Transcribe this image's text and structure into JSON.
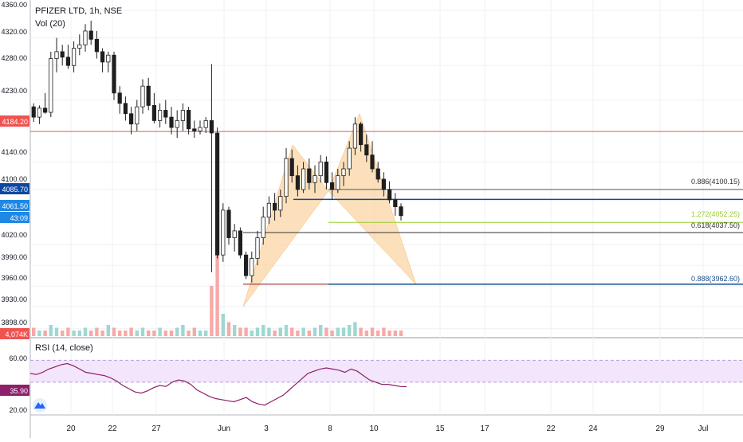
{
  "header": {
    "symbol_title": "PFIZER LTD, 1h, NSE",
    "volume_label": "Vol (20)"
  },
  "rsi_panel": {
    "label": "RSI (14, close)",
    "axis_ticks": [
      "60.00",
      "20.00"
    ],
    "current_badge": "35.90",
    "band_color": "#f3e5fb",
    "line_color": "#8e1f6b",
    "series": [
      48,
      47,
      49,
      52,
      54,
      56,
      57,
      55,
      52,
      49,
      48,
      47,
      46,
      44,
      41,
      37,
      34,
      31,
      30,
      32,
      35,
      37,
      36,
      40,
      42,
      41,
      38,
      33,
      30,
      27,
      25,
      24,
      23,
      22,
      24,
      26,
      22,
      20,
      19,
      22,
      25,
      28,
      33,
      38,
      43,
      48,
      50,
      52,
      53,
      52,
      51,
      49,
      52,
      50,
      46,
      42,
      40,
      38,
      38,
      37,
      36,
      35.9
    ]
  },
  "price_axis": {
    "ticks": [
      "4360.00",
      "4320.00",
      "4280.00",
      "4230.00",
      "4140.00",
      "4100.00",
      "4020.00",
      "3990.00",
      "3960.00",
      "3930.00",
      "3898.00"
    ],
    "badges": [
      {
        "text": "4184.20",
        "color": "#ef5350"
      },
      {
        "text": "4085.70",
        "color": "#0d47a1"
      },
      {
        "text": "4061.50",
        "color": "#1e88e5"
      },
      {
        "text": "43:09",
        "color": "#1e88e5"
      },
      {
        "text": "4,074K",
        "color": "#ef5350"
      }
    ]
  },
  "time_axis": {
    "labels": [
      "20",
      "22",
      "27",
      "Jun",
      "3",
      "8",
      "10",
      "15",
      "17",
      "22",
      "24",
      "29",
      "Jul"
    ]
  },
  "fib_labels": [
    {
      "text": "0.886(4100.15)",
      "color": "#333333"
    },
    {
      "text": "1.272(4052.25)",
      "color": "#9acd32"
    },
    {
      "text": "0.618(4037.50)",
      "color": "#333333"
    },
    {
      "text": "0.888(3962.60)",
      "color": "#1a4f8b"
    }
  ],
  "levels": {
    "resistance": 4184.2,
    "blue_level": 4085.7,
    "fib_0886": 4100.15,
    "fib_1272": 4052.25,
    "fib_0618": 4037.5,
    "fib_0888": 3962.6
  },
  "chart_data": {
    "type": "candlestick",
    "title": "PFIZER LTD, 1h, NSE",
    "ylim": [
      3885,
      4375
    ],
    "up_color": "#26a69a",
    "down_color": "#ef5350",
    "candles": [
      [
        4220,
        4225,
        4198,
        4205
      ],
      [
        4205,
        4222,
        4195,
        4218
      ],
      [
        4218,
        4240,
        4210,
        4212
      ],
      [
        4212,
        4300,
        4205,
        4290
      ],
      [
        4290,
        4320,
        4270,
        4300
      ],
      [
        4300,
        4310,
        4280,
        4292
      ],
      [
        4292,
        4310,
        4275,
        4280
      ],
      [
        4280,
        4315,
        4270,
        4305
      ],
      [
        4305,
        4325,
        4295,
        4310
      ],
      [
        4310,
        4340,
        4300,
        4330
      ],
      [
        4330,
        4345,
        4310,
        4318
      ],
      [
        4318,
        4330,
        4290,
        4300
      ],
      [
        4300,
        4305,
        4270,
        4285
      ],
      [
        4285,
        4300,
        4270,
        4295
      ],
      [
        4295,
        4300,
        4230,
        4240
      ],
      [
        4240,
        4250,
        4210,
        4225
      ],
      [
        4225,
        4235,
        4200,
        4210
      ],
      [
        4210,
        4220,
        4180,
        4195
      ],
      [
        4195,
        4230,
        4185,
        4220
      ],
      [
        4220,
        4260,
        4210,
        4250
      ],
      [
        4250,
        4262,
        4215,
        4222
      ],
      [
        4222,
        4240,
        4196,
        4200
      ],
      [
        4200,
        4225,
        4190,
        4215
      ],
      [
        4215,
        4230,
        4195,
        4205
      ],
      [
        4205,
        4220,
        4180,
        4190
      ],
      [
        4190,
        4215,
        4175,
        4200
      ],
      [
        4200,
        4225,
        4185,
        4215
      ],
      [
        4215,
        4220,
        4180,
        4188
      ],
      [
        4188,
        4200,
        4175,
        4185
      ],
      [
        4185,
        4200,
        4180,
        4190
      ],
      [
        4190,
        4205,
        4182,
        4200
      ],
      [
        4200,
        4282,
        3980,
        4182
      ],
      [
        4182,
        4190,
        4000,
        4005
      ],
      [
        4005,
        4080,
        3995,
        4070
      ],
      [
        4070,
        4075,
        4020,
        4030
      ],
      [
        4030,
        4050,
        4010,
        4040
      ],
      [
        4040,
        4045,
        4000,
        4005
      ],
      [
        4005,
        4010,
        3970,
        3975
      ],
      [
        3975,
        4010,
        3965,
        4000
      ],
      [
        4000,
        4040,
        3990,
        4030
      ],
      [
        4030,
        4075,
        4020,
        4060
      ],
      [
        4060,
        4090,
        4050,
        4080
      ],
      [
        4080,
        4095,
        4055,
        4070
      ],
      [
        4070,
        4100,
        4060,
        4090
      ],
      [
        4090,
        4160,
        4080,
        4145
      ],
      [
        4145,
        4158,
        4110,
        4120
      ],
      [
        4120,
        4135,
        4090,
        4100
      ],
      [
        4100,
        4140,
        4095,
        4130
      ],
      [
        4130,
        4145,
        4100,
        4110
      ],
      [
        4110,
        4135,
        4095,
        4120
      ],
      [
        4120,
        4150,
        4110,
        4140
      ],
      [
        4140,
        4148,
        4100,
        4110
      ],
      [
        4110,
        4125,
        4085,
        4100
      ],
      [
        4100,
        4130,
        4095,
        4120
      ],
      [
        4120,
        4140,
        4105,
        4130
      ],
      [
        4130,
        4170,
        4120,
        4160
      ],
      [
        4160,
        4205,
        4150,
        4195
      ],
      [
        4195,
        4198,
        4155,
        4165
      ],
      [
        4165,
        4180,
        4140,
        4150
      ],
      [
        4150,
        4170,
        4125,
        4130
      ],
      [
        4130,
        4140,
        4110,
        4115
      ],
      [
        4115,
        4125,
        4090,
        4100
      ],
      [
        4100,
        4112,
        4080,
        4085
      ],
      [
        4085,
        4095,
        4062,
        4075
      ],
      [
        4075,
        4080,
        4055,
        4062
      ]
    ],
    "volume": [
      3,
      2,
      2,
      4,
      3,
      2,
      3,
      2,
      2,
      3,
      2,
      3,
      2,
      4,
      3,
      2,
      2,
      3,
      2,
      3,
      2,
      2,
      3,
      2,
      2,
      3,
      4,
      2,
      3,
      2,
      2,
      18,
      30,
      8,
      5,
      4,
      3,
      3,
      2,
      3,
      4,
      3,
      2,
      3,
      4,
      3,
      2,
      3,
      2,
      3,
      4,
      3,
      2,
      3,
      3,
      4,
      5,
      3,
      2,
      3,
      2,
      3,
      2,
      2,
      2
    ]
  }
}
